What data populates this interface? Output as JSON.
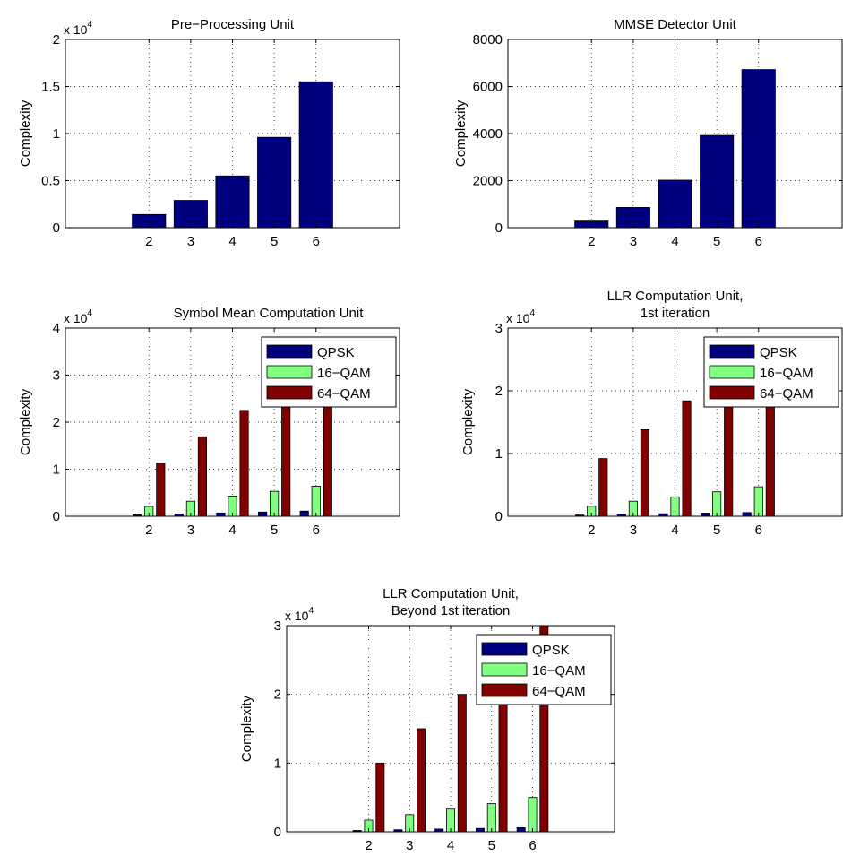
{
  "colors": {
    "QPSK": "#00007f",
    "16-QAM": "#80ff80",
    "64-QAM": "#800000",
    "axis": "#000000",
    "grid": "#000000"
  },
  "chart_data": [
    {
      "id": "pre",
      "type": "bar",
      "title": [
        "Pre−Processing Unit"
      ],
      "ylabel": "Complexity",
      "exponent_label": "x 10",
      "exponent": "4",
      "xlim": [
        0,
        8
      ],
      "ylim": [
        0,
        2
      ],
      "xticks": [
        "2",
        "3",
        "4",
        "5",
        "6"
      ],
      "yticks": [
        "0",
        "0.5",
        "1",
        "1.5",
        "2"
      ],
      "grid": true,
      "series": [
        {
          "values": [
            0.14,
            0.29,
            0.55,
            0.96,
            1.55
          ],
          "color": "#00007f"
        }
      ]
    },
    {
      "id": "mmse",
      "type": "bar",
      "title": [
        "MMSE Detector Unit"
      ],
      "ylabel": "Complexity",
      "xlim": [
        0,
        8
      ],
      "ylim": [
        0,
        8000
      ],
      "xticks": [
        "2",
        "3",
        "4",
        "5",
        "6"
      ],
      "yticks": [
        "0",
        "2000",
        "4000",
        "6000",
        "8000"
      ],
      "grid": true,
      "series": [
        {
          "values": [
            280,
            860,
            2020,
            3920,
            6720
          ],
          "color": "#00007f"
        }
      ]
    },
    {
      "id": "symbol",
      "type": "bar",
      "title": [
        "Symbol Mean Computation Unit"
      ],
      "ylabel": "Complexity",
      "exponent_label": "x 10",
      "exponent": "4",
      "xlim": [
        0,
        8
      ],
      "ylim": [
        0,
        4
      ],
      "xticks": [
        "2",
        "3",
        "4",
        "5",
        "6"
      ],
      "yticks": [
        "0",
        "1",
        "2",
        "3",
        "4"
      ],
      "grid": true,
      "legend": {
        "placement": "top-right",
        "entries": [
          "QPSK",
          "16−QAM",
          "64−QAM"
        ]
      },
      "series": [
        {
          "name": "QPSK",
          "values": [
            0.03,
            0.05,
            0.07,
            0.09,
            0.11
          ],
          "color": "#00007f"
        },
        {
          "name": "16−QAM",
          "values": [
            0.21,
            0.32,
            0.43,
            0.53,
            0.64
          ],
          "color": "#80ff80"
        },
        {
          "name": "64−QAM",
          "values": [
            1.13,
            1.69,
            2.25,
            2.81,
            3.37
          ],
          "color": "#800000"
        }
      ]
    },
    {
      "id": "llr1",
      "type": "bar",
      "title": [
        "LLR Computation Unit,",
        "1st iteration"
      ],
      "ylabel": "Complexity",
      "exponent_label": "x 10",
      "exponent": "4",
      "xlim": [
        0,
        8
      ],
      "ylim": [
        0,
        3
      ],
      "xticks": [
        "2",
        "3",
        "4",
        "5",
        "6"
      ],
      "yticks": [
        "0",
        "1",
        "2",
        "3"
      ],
      "grid": true,
      "legend": {
        "placement": "top-right",
        "entries": [
          "QPSK",
          "16−QAM",
          "64−QAM"
        ]
      },
      "series": [
        {
          "name": "QPSK",
          "values": [
            0.02,
            0.03,
            0.04,
            0.05,
            0.06
          ],
          "color": "#00007f"
        },
        {
          "name": "16−QAM",
          "values": [
            0.16,
            0.24,
            0.31,
            0.39,
            0.47
          ],
          "color": "#80ff80"
        },
        {
          "name": "64−QAM",
          "values": [
            0.92,
            1.38,
            1.84,
            2.3,
            2.76
          ],
          "color": "#800000"
        }
      ]
    },
    {
      "id": "llrb",
      "type": "bar",
      "title": [
        "LLR Computation Unit,",
        "Beyond 1st iteration"
      ],
      "ylabel": "Complexity",
      "exponent_label": "x 10",
      "exponent": "4",
      "xlim": [
        0,
        8
      ],
      "ylim": [
        0,
        3
      ],
      "xticks": [
        "2",
        "3",
        "4",
        "5",
        "6"
      ],
      "yticks": [
        "0",
        "1",
        "2",
        "3"
      ],
      "grid": true,
      "legend": {
        "placement": "top-right",
        "entries": [
          "QPSK",
          "16−QAM",
          "64−QAM"
        ]
      },
      "series": [
        {
          "name": "QPSK",
          "values": [
            0.02,
            0.03,
            0.04,
            0.05,
            0.06
          ],
          "color": "#00007f"
        },
        {
          "name": "16−QAM",
          "values": [
            0.17,
            0.25,
            0.33,
            0.41,
            0.5
          ],
          "color": "#80ff80"
        },
        {
          "name": "64−QAM",
          "values": [
            1.0,
            1.5,
            2.0,
            2.5,
            3.0
          ],
          "color": "#800000"
        }
      ]
    }
  ]
}
